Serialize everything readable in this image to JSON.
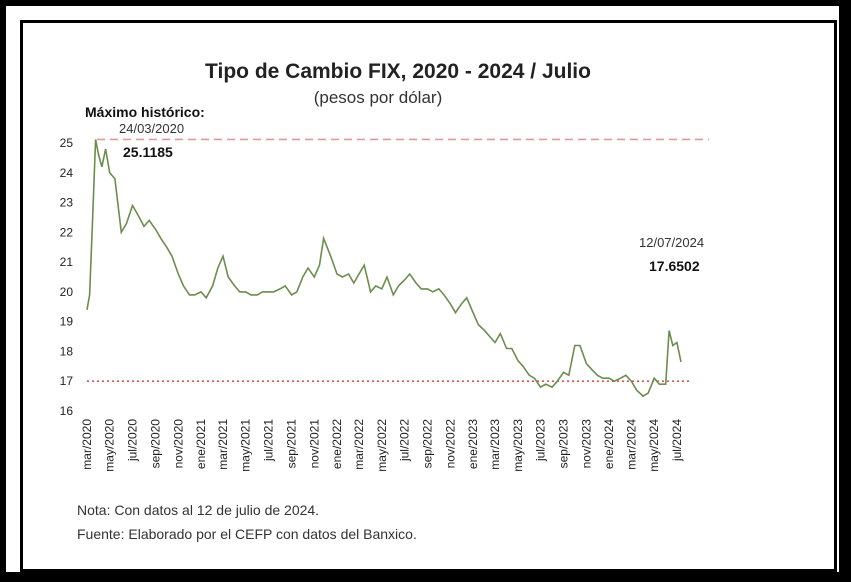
{
  "chart_data": {
    "type": "line",
    "title": "Tipo de Cambio FIX, 2020 - 2024 / Julio",
    "subtitle": "(pesos por dólar)",
    "ylim": [
      16,
      25
    ],
    "yticks": [
      16,
      17,
      18,
      19,
      20,
      21,
      22,
      23,
      24,
      25
    ],
    "xticks": [
      "mar/2020",
      "may/2020",
      "jul/2020",
      "sep/2020",
      "nov/2020",
      "ene/2021",
      "mar/2021",
      "may/2021",
      "jul/2021",
      "sep/2021",
      "nov/2021",
      "ene/2022",
      "mar/2022",
      "may/2022",
      "jul/2022",
      "sep/2022",
      "nov/2022",
      "ene/2023",
      "mar/2023",
      "may/2023",
      "jul/2023",
      "sep/2023",
      "nov/2023",
      "ene/2024",
      "mar/2024",
      "may/2024",
      "jul/2024"
    ],
    "grid": false,
    "series": [
      {
        "color": "#6b8e4e",
        "x": [
          "2020-03-01",
          "2020-03-08",
          "2020-03-15",
          "2020-03-24",
          "2020-04-01",
          "2020-04-10",
          "2020-04-20",
          "2020-05-01",
          "2020-05-15",
          "2020-06-01",
          "2020-06-15",
          "2020-07-01",
          "2020-07-15",
          "2020-08-01",
          "2020-08-15",
          "2020-09-01",
          "2020-09-15",
          "2020-10-01",
          "2020-10-15",
          "2020-11-01",
          "2020-11-15",
          "2020-12-01",
          "2020-12-15",
          "2021-01-01",
          "2021-01-15",
          "2021-02-01",
          "2021-02-15",
          "2021-03-01",
          "2021-03-15",
          "2021-04-01",
          "2021-04-15",
          "2021-05-01",
          "2021-05-15",
          "2021-06-01",
          "2021-06-15",
          "2021-07-01",
          "2021-07-15",
          "2021-08-01",
          "2021-08-15",
          "2021-09-01",
          "2021-09-15",
          "2021-10-01",
          "2021-10-15",
          "2021-11-01",
          "2021-11-15",
          "2021-11-26",
          "2021-12-15",
          "2022-01-01",
          "2022-01-15",
          "2022-02-01",
          "2022-02-15",
          "2022-03-01",
          "2022-03-15",
          "2022-04-01",
          "2022-04-15",
          "2022-05-01",
          "2022-05-15",
          "2022-06-01",
          "2022-06-15",
          "2022-07-01",
          "2022-07-15",
          "2022-08-01",
          "2022-08-15",
          "2022-09-01",
          "2022-09-15",
          "2022-10-01",
          "2022-10-15",
          "2022-11-01",
          "2022-11-15",
          "2022-12-01",
          "2022-12-15",
          "2023-01-01",
          "2023-01-15",
          "2023-02-01",
          "2023-02-15",
          "2023-03-01",
          "2023-03-15",
          "2023-04-01",
          "2023-04-15",
          "2023-05-01",
          "2023-05-15",
          "2023-06-01",
          "2023-06-15",
          "2023-07-01",
          "2023-07-15",
          "2023-08-01",
          "2023-08-15",
          "2023-09-01",
          "2023-09-15",
          "2023-10-01",
          "2023-10-15",
          "2023-11-01",
          "2023-11-15",
          "2023-12-01",
          "2023-12-15",
          "2024-01-01",
          "2024-01-15",
          "2024-02-01",
          "2024-02-15",
          "2024-03-01",
          "2024-03-15",
          "2024-04-01",
          "2024-04-15",
          "2024-05-01",
          "2024-05-15",
          "2024-06-01",
          "2024-06-10",
          "2024-06-20",
          "2024-07-01",
          "2024-07-12"
        ],
        "values": [
          19.4,
          19.9,
          22.1,
          25.1185,
          24.6,
          24.2,
          24.8,
          24.0,
          23.8,
          22.0,
          22.3,
          22.9,
          22.6,
          22.2,
          22.4,
          22.1,
          21.8,
          21.5,
          21.2,
          20.6,
          20.2,
          19.9,
          19.9,
          20.0,
          19.8,
          20.2,
          20.8,
          21.2,
          20.5,
          20.2,
          20.0,
          20.0,
          19.9,
          19.9,
          20.0,
          20.0,
          20.0,
          20.1,
          20.2,
          19.9,
          20.0,
          20.5,
          20.8,
          20.5,
          20.9,
          21.8,
          21.2,
          20.6,
          20.5,
          20.6,
          20.3,
          20.6,
          20.9,
          20.0,
          20.2,
          20.1,
          20.5,
          19.9,
          20.2,
          20.4,
          20.6,
          20.3,
          20.1,
          20.1,
          20.0,
          20.1,
          19.9,
          19.6,
          19.3,
          19.6,
          19.8,
          19.3,
          18.9,
          18.7,
          18.5,
          18.3,
          18.6,
          18.1,
          18.1,
          17.7,
          17.5,
          17.2,
          17.1,
          16.8,
          16.9,
          16.8,
          17.0,
          17.3,
          17.2,
          18.2,
          18.2,
          17.6,
          17.4,
          17.2,
          17.1,
          17.1,
          17.0,
          17.1,
          17.2,
          17.0,
          16.7,
          16.5,
          16.6,
          17.1,
          16.9,
          16.9,
          18.7,
          18.2,
          18.3,
          17.6502
        ]
      }
    ],
    "reference_lines": [
      {
        "value": 25.1185,
        "color": "#e09a9a",
        "style": "dashed"
      },
      {
        "value": 17.0,
        "color": "#e05050",
        "style": "dotted"
      }
    ],
    "annotations": {
      "max_label": "Máximo histórico:",
      "max_date": "24/03/2020",
      "max_value": "25.1185",
      "last_date": "12/07/2024",
      "last_value": "17.6502"
    },
    "notes": [
      "Nota: Con datos al 12 de julio de 2024.",
      "Fuente: Elaborado por el CEFP con datos del Banxico."
    ]
  }
}
